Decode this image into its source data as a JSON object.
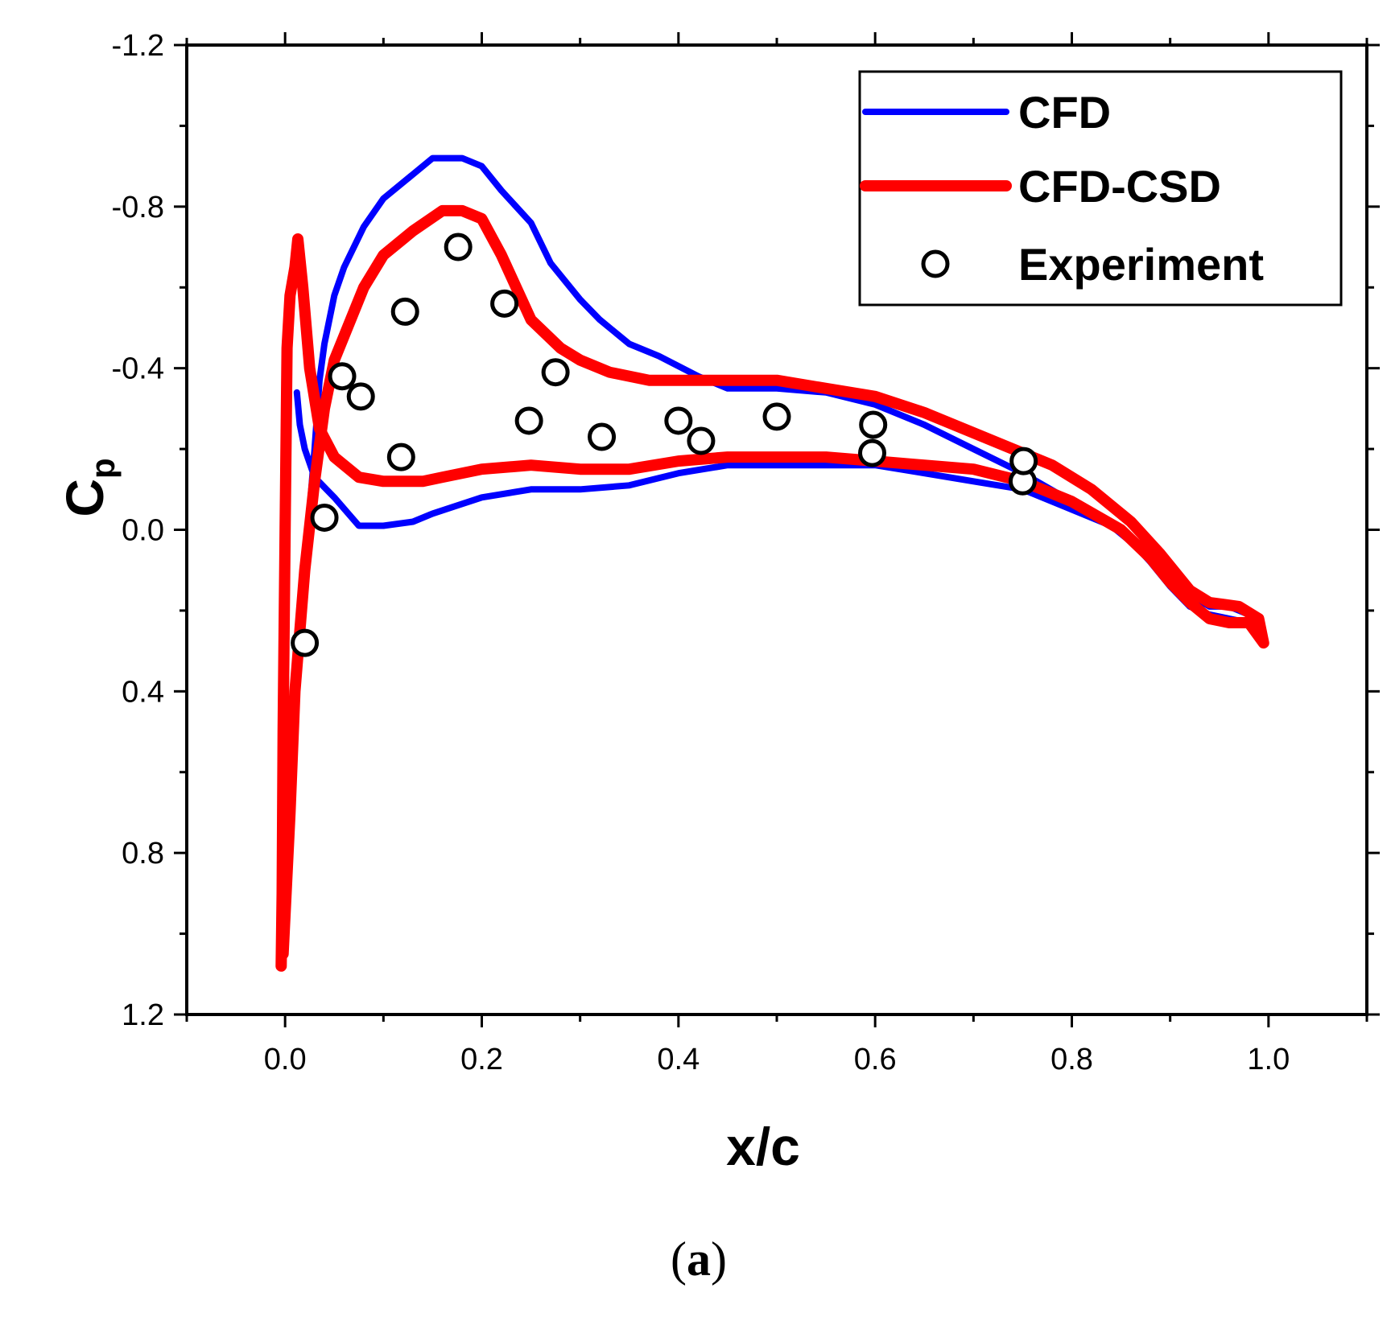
{
  "chart_data": {
    "type": "line",
    "xlabel": "x/c",
    "ylabel": "C",
    "ylabel_subscript": "p",
    "panel_label": "(a)",
    "panel_label_bold": "a",
    "xlim": [
      -0.1,
      1.1
    ],
    "ylim": [
      1.2,
      -1.2
    ],
    "x_ticks": [
      0.0,
      0.2,
      0.4,
      0.6,
      0.8,
      1.0
    ],
    "x_tick_labels": [
      "0.0",
      "0.2",
      "0.4",
      "0.6",
      "0.8",
      "1.0"
    ],
    "y_ticks": [
      -1.2,
      -0.8,
      -0.4,
      0.0,
      0.4,
      0.8,
      1.2
    ],
    "y_tick_labels": [
      "-1.2",
      "-0.8",
      "-0.4",
      "0.0",
      "0.4",
      "0.8",
      "1.2"
    ],
    "legend_position": "top-right",
    "colors": {
      "cfd": "#0000ff",
      "cfd_csd": "#ff0000",
      "experiment": "#000000"
    },
    "series": [
      {
        "name": "CFD",
        "style": "line",
        "color": "#0000ff",
        "points": [
          [
            0.012,
            -0.34
          ],
          [
            0.015,
            -0.26
          ],
          [
            0.02,
            -0.2
          ],
          [
            0.03,
            -0.13
          ],
          [
            0.05,
            -0.08
          ],
          [
            0.075,
            -0.01
          ],
          [
            0.1,
            -0.01
          ],
          [
            0.13,
            -0.02
          ],
          [
            0.15,
            -0.04
          ],
          [
            0.2,
            -0.08
          ],
          [
            0.25,
            -0.1
          ],
          [
            0.3,
            -0.1
          ],
          [
            0.35,
            -0.11
          ],
          [
            0.4,
            -0.14
          ],
          [
            0.45,
            -0.16
          ],
          [
            0.5,
            -0.16
          ],
          [
            0.55,
            -0.16
          ],
          [
            0.6,
            -0.16
          ],
          [
            0.65,
            -0.14
          ],
          [
            0.7,
            -0.12
          ],
          [
            0.75,
            -0.1
          ],
          [
            0.8,
            -0.05
          ],
          [
            0.85,
            0.0
          ],
          [
            0.88,
            0.08
          ],
          [
            0.9,
            0.14
          ],
          [
            0.92,
            0.19
          ],
          [
            0.94,
            0.21
          ],
          [
            0.96,
            0.22
          ],
          [
            0.98,
            0.23
          ],
          [
            0.99,
            0.25
          ],
          [
            0.995,
            0.27
          ],
          [
            0.993,
            0.25
          ],
          [
            0.98,
            0.21
          ],
          [
            0.96,
            0.19
          ],
          [
            0.94,
            0.19
          ],
          [
            0.92,
            0.16
          ],
          [
            0.9,
            0.12
          ],
          [
            0.87,
            0.05
          ],
          [
            0.84,
            -0.01
          ],
          [
            0.8,
            -0.07
          ],
          [
            0.75,
            -0.14
          ],
          [
            0.7,
            -0.2
          ],
          [
            0.65,
            -0.26
          ],
          [
            0.6,
            -0.31
          ],
          [
            0.55,
            -0.34
          ],
          [
            0.5,
            -0.35
          ],
          [
            0.45,
            -0.35
          ],
          [
            0.42,
            -0.38
          ],
          [
            0.38,
            -0.43
          ],
          [
            0.35,
            -0.46
          ],
          [
            0.32,
            -0.52
          ],
          [
            0.3,
            -0.57
          ],
          [
            0.27,
            -0.66
          ],
          [
            0.25,
            -0.76
          ],
          [
            0.22,
            -0.84
          ],
          [
            0.2,
            -0.9
          ],
          [
            0.18,
            -0.92
          ],
          [
            0.15,
            -0.92
          ],
          [
            0.13,
            -0.88
          ],
          [
            0.1,
            -0.82
          ],
          [
            0.08,
            -0.75
          ],
          [
            0.06,
            -0.65
          ],
          [
            0.05,
            -0.58
          ],
          [
            0.04,
            -0.46
          ],
          [
            0.035,
            -0.37
          ],
          [
            0.03,
            -0.2
          ],
          [
            0.025,
            -0.05
          ],
          [
            0.02,
            0.1
          ],
          [
            0.017,
            0.18
          ],
          [
            0.014,
            0.22
          ]
        ]
      },
      {
        "name": "CFD-CSD",
        "style": "line",
        "color": "#ff0000",
        "points": [
          [
            -0.004,
            1.08
          ],
          [
            -0.003,
            0.9
          ],
          [
            -0.002,
            0.5
          ],
          [
            0.0,
            0.0
          ],
          [
            0.002,
            -0.45
          ],
          [
            0.005,
            -0.58
          ],
          [
            0.01,
            -0.65
          ],
          [
            0.013,
            -0.72
          ],
          [
            0.018,
            -0.6
          ],
          [
            0.025,
            -0.4
          ],
          [
            0.035,
            -0.25
          ],
          [
            0.05,
            -0.18
          ],
          [
            0.075,
            -0.13
          ],
          [
            0.1,
            -0.12
          ],
          [
            0.14,
            -0.12
          ],
          [
            0.16,
            -0.13
          ],
          [
            0.2,
            -0.15
          ],
          [
            0.25,
            -0.16
          ],
          [
            0.3,
            -0.15
          ],
          [
            0.35,
            -0.15
          ],
          [
            0.4,
            -0.17
          ],
          [
            0.45,
            -0.18
          ],
          [
            0.5,
            -0.18
          ],
          [
            0.55,
            -0.18
          ],
          [
            0.6,
            -0.17
          ],
          [
            0.65,
            -0.16
          ],
          [
            0.7,
            -0.15
          ],
          [
            0.75,
            -0.12
          ],
          [
            0.8,
            -0.07
          ],
          [
            0.85,
            0.0
          ],
          [
            0.88,
            0.07
          ],
          [
            0.9,
            0.13
          ],
          [
            0.92,
            0.18
          ],
          [
            0.94,
            0.22
          ],
          [
            0.96,
            0.23
          ],
          [
            0.98,
            0.23
          ],
          [
            0.995,
            0.28
          ],
          [
            0.99,
            0.22
          ],
          [
            0.97,
            0.19
          ],
          [
            0.94,
            0.18
          ],
          [
            0.92,
            0.15
          ],
          [
            0.89,
            0.06
          ],
          [
            0.86,
            -0.02
          ],
          [
            0.82,
            -0.1
          ],
          [
            0.78,
            -0.16
          ],
          [
            0.74,
            -0.2
          ],
          [
            0.7,
            -0.24
          ],
          [
            0.65,
            -0.29
          ],
          [
            0.6,
            -0.33
          ],
          [
            0.55,
            -0.35
          ],
          [
            0.5,
            -0.37
          ],
          [
            0.45,
            -0.37
          ],
          [
            0.4,
            -0.37
          ],
          [
            0.37,
            -0.37
          ],
          [
            0.33,
            -0.39
          ],
          [
            0.3,
            -0.42
          ],
          [
            0.28,
            -0.45
          ],
          [
            0.25,
            -0.52
          ],
          [
            0.22,
            -0.68
          ],
          [
            0.2,
            -0.77
          ],
          [
            0.18,
            -0.79
          ],
          [
            0.16,
            -0.79
          ],
          [
            0.13,
            -0.74
          ],
          [
            0.1,
            -0.68
          ],
          [
            0.08,
            -0.6
          ],
          [
            0.06,
            -0.48
          ],
          [
            0.05,
            -0.42
          ],
          [
            0.04,
            -0.3
          ],
          [
            0.03,
            -0.12
          ],
          [
            0.02,
            0.1
          ],
          [
            0.01,
            0.4
          ],
          [
            0.005,
            0.7
          ],
          [
            -0.002,
            1.05
          ]
        ]
      },
      {
        "name": "Experiment",
        "style": "markers",
        "marker": "open-circle",
        "color": "#000000",
        "points": [
          [
            0.02,
            0.28
          ],
          [
            0.04,
            -0.03
          ],
          [
            0.058,
            -0.38
          ],
          [
            0.077,
            -0.33
          ],
          [
            0.118,
            -0.18
          ],
          [
            0.122,
            -0.54
          ],
          [
            0.176,
            -0.7
          ],
          [
            0.223,
            -0.56
          ],
          [
            0.248,
            -0.27
          ],
          [
            0.275,
            -0.39
          ],
          [
            0.322,
            -0.23
          ],
          [
            0.4,
            -0.27
          ],
          [
            0.423,
            -0.22
          ],
          [
            0.5,
            -0.28
          ],
          [
            0.597,
            -0.19
          ],
          [
            0.598,
            -0.26
          ],
          [
            0.75,
            -0.12
          ],
          [
            0.751,
            -0.17
          ]
        ]
      }
    ]
  }
}
